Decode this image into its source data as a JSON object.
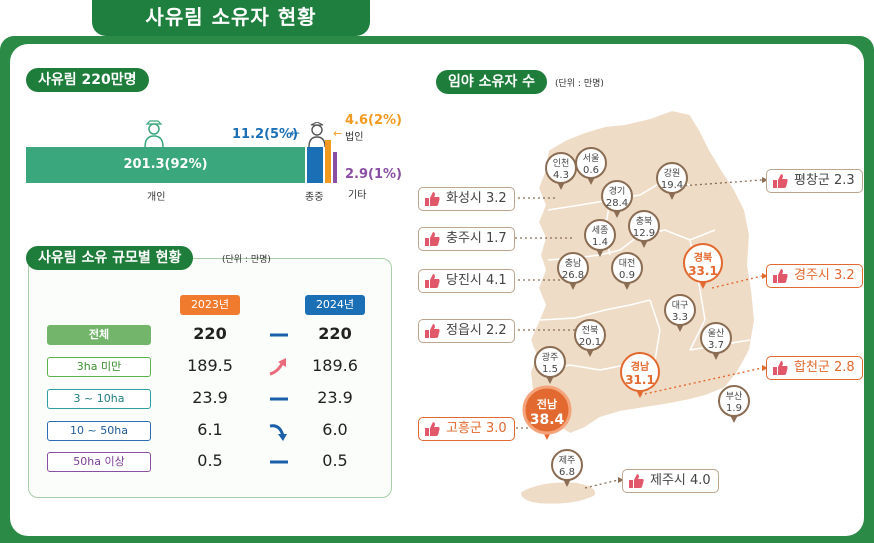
{
  "title": "사유림 소유자 현황",
  "left_panel": {
    "pill": "사유림 220만명",
    "main_value": "201.3(92%)",
    "main_label": "개인",
    "jongjung_value": "11.2(5%)",
    "jongjung_label": "종중",
    "corp_value": "4.6(2%)",
    "corp_label": "법인",
    "other_value": "2.9(1%)",
    "other_label": "기타"
  },
  "table": {
    "pill": "사유림 소유 규모별 현황",
    "unit": "(단위 : 만명)",
    "year1": "2023년",
    "year2": "2024년",
    "rows": [
      {
        "label": "전체",
        "v2023": "220",
        "v2024": "220",
        "trend": "same"
      },
      {
        "label": "3ha 미만",
        "v2023": "189.5",
        "v2024": "189.6",
        "trend": "up"
      },
      {
        "label": "3 ~ 10ha",
        "v2023": "23.9",
        "v2024": "23.9",
        "trend": "same"
      },
      {
        "label": "10 ~ 50ha",
        "v2023": "6.1",
        "v2024": "6.0",
        "trend": "down"
      },
      {
        "label": "50ha 이상",
        "v2023": "0.5",
        "v2024": "0.5",
        "trend": "same"
      }
    ]
  },
  "map": {
    "pill": "임야 소유자 수",
    "unit": "(단위 : 만명)",
    "regions": [
      {
        "name": "인천",
        "value": "4.3"
      },
      {
        "name": "서울",
        "value": "0.6"
      },
      {
        "name": "강원",
        "value": "19.4"
      },
      {
        "name": "경기",
        "value": "28.4"
      },
      {
        "name": "세종",
        "value": "1.4"
      },
      {
        "name": "충북",
        "value": "12.9"
      },
      {
        "name": "충남",
        "value": "26.8"
      },
      {
        "name": "대전",
        "value": "0.9"
      },
      {
        "name": "경북",
        "value": "33.1"
      },
      {
        "name": "대구",
        "value": "3.3"
      },
      {
        "name": "전북",
        "value": "20.1"
      },
      {
        "name": "울산",
        "value": "3.7"
      },
      {
        "name": "광주",
        "value": "1.5"
      },
      {
        "name": "경남",
        "value": "31.1"
      },
      {
        "name": "전남",
        "value": "38.4"
      },
      {
        "name": "부산",
        "value": "1.9"
      },
      {
        "name": "제주",
        "value": "6.8"
      }
    ],
    "callouts": [
      {
        "text": "화성시 3.2"
      },
      {
        "text": "충주시 1.7"
      },
      {
        "text": "당진시 4.1"
      },
      {
        "text": "정읍시 2.2"
      },
      {
        "text": "고흥군 3.0"
      },
      {
        "text": "평창군 2.3"
      },
      {
        "text": "경주시 3.2"
      },
      {
        "text": "합천군 2.8"
      },
      {
        "text": "제주시 4.0"
      }
    ]
  },
  "colors": {
    "green_dark": "#1e7f3f",
    "bar_main": "#3aa77c",
    "blue": "#1a6fb5",
    "orange": "#f29a1f",
    "purple": "#8a4fa3",
    "map_land": "#efdcc6",
    "highlight": "#e2692f"
  },
  "chart_data": [
    {
      "type": "bar",
      "categories": [
        "개인",
        "종중",
        "법인",
        "기타"
      ],
      "values": [
        201.3,
        11.2,
        4.6,
        2.9
      ],
      "percent": [
        92,
        5,
        2,
        1
      ],
      "title": "사유림 220만명"
    },
    {
      "type": "table",
      "title": "사유림 소유 규모별 현황",
      "columns": [
        "2023년",
        "2024년"
      ],
      "rows": [
        "전체",
        "3ha 미만",
        "3 ~ 10ha",
        "10 ~ 50ha",
        "50ha 이상"
      ],
      "values": [
        [
          220,
          220
        ],
        [
          189.5,
          189.6
        ],
        [
          23.9,
          23.9
        ],
        [
          6.1,
          6.0
        ],
        [
          0.5,
          0.5
        ]
      ]
    },
    {
      "type": "map",
      "title": "임야 소유자 수",
      "categories": [
        "인천",
        "서울",
        "강원",
        "경기",
        "세종",
        "충북",
        "충남",
        "대전",
        "경북",
        "대구",
        "전북",
        "울산",
        "광주",
        "경남",
        "전남",
        "부산",
        "제주"
      ],
      "values": [
        4.3,
        0.6,
        19.4,
        28.4,
        1.4,
        12.9,
        26.8,
        0.9,
        33.1,
        3.3,
        20.1,
        3.7,
        1.5,
        31.1,
        38.4,
        1.9,
        6.8
      ]
    }
  ]
}
